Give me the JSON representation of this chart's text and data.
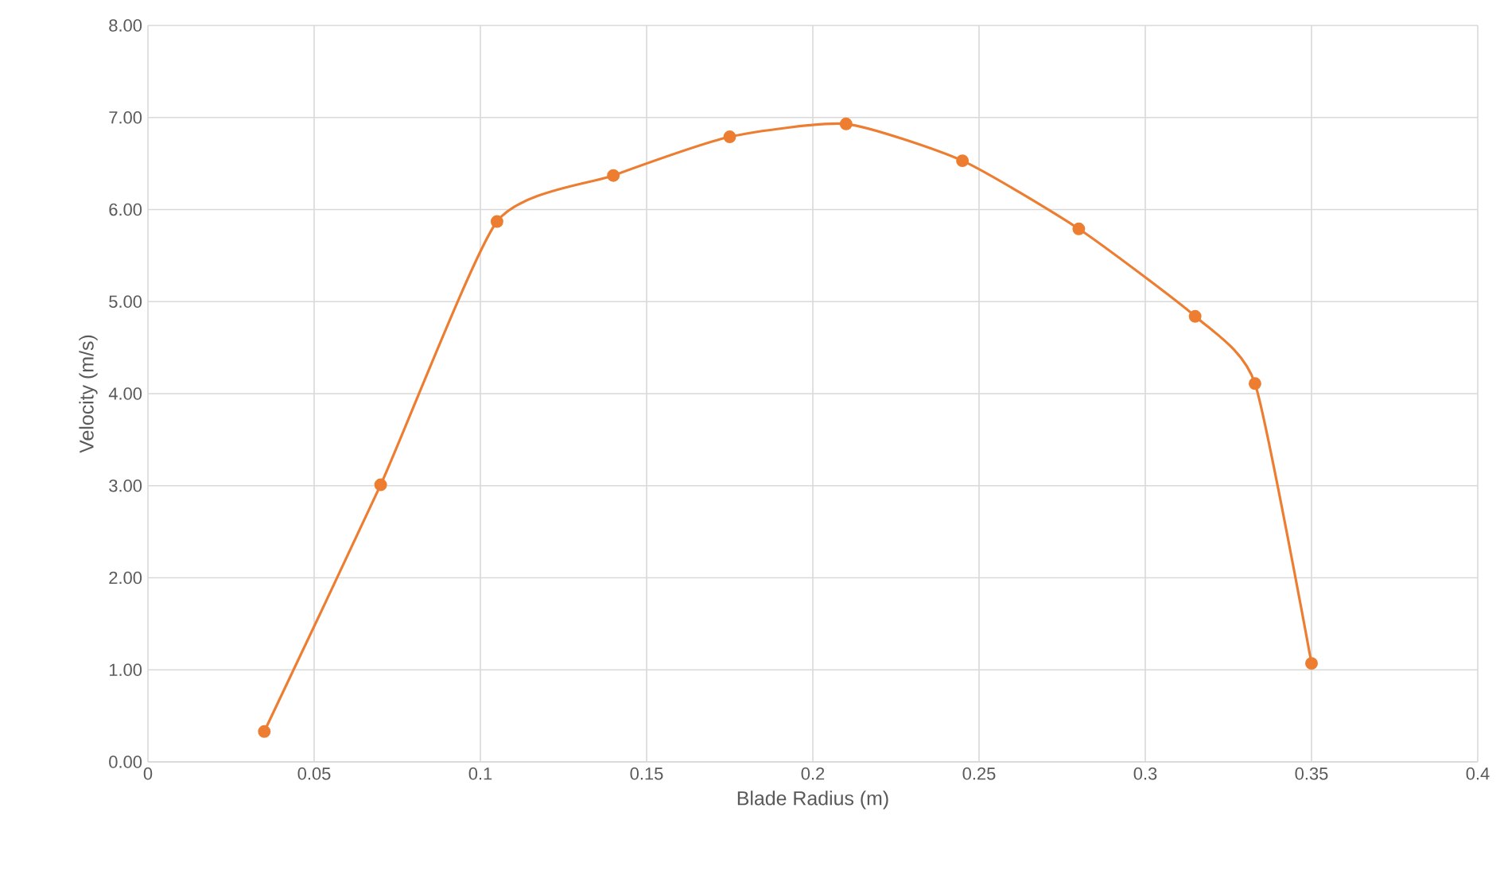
{
  "chart_data": {
    "type": "line",
    "xlabel": "Blade Radius (m)",
    "ylabel": "Velocity (m/s)",
    "series": [
      {
        "color": "#ed7d31",
        "x": [
          0.035,
          0.07,
          0.105,
          0.14,
          0.175,
          0.21,
          0.245,
          0.28,
          0.315,
          0.333,
          0.35
        ],
        "values": [
          0.33,
          3.01,
          5.87,
          6.37,
          6.79,
          6.93,
          6.53,
          5.79,
          4.84,
          4.11,
          1.07
        ]
      }
    ],
    "xlim": [
      0,
      0.4
    ],
    "xticks": [
      0,
      0.05,
      0.1,
      0.15,
      0.2,
      0.25,
      0.3,
      0.35,
      0.4
    ],
    "ylim": [
      0,
      8
    ],
    "yticks": [
      {
        "value": 0,
        "label": "0.00"
      },
      {
        "value": 1,
        "label": "1.00"
      },
      {
        "value": 2,
        "label": "2.00"
      },
      {
        "value": 3,
        "label": "3.00"
      },
      {
        "value": 4,
        "label": "4.00"
      },
      {
        "value": 5,
        "label": "5.00"
      },
      {
        "value": 6,
        "label": "6.00"
      },
      {
        "value": 7,
        "label": "7.00"
      },
      {
        "value": 8,
        "label": "8.00"
      }
    ],
    "grid": true,
    "marker": "circle",
    "line_style": "solid"
  }
}
